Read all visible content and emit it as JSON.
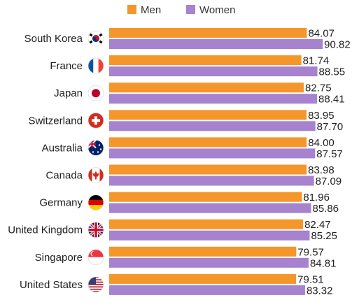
{
  "chart_data": {
    "type": "bar",
    "orientation": "horizontal",
    "title": "",
    "xlabel": "",
    "ylabel": "",
    "legend_position": "top-center",
    "grid": false,
    "categories": [
      "South Korea",
      "France",
      "Japan",
      "Switzerland",
      "Australia",
      "Canada",
      "Germany",
      "United Kingdom",
      "Singapore",
      "United States"
    ],
    "flags": [
      "south-korea-flag-icon",
      "france-flag-icon",
      "japan-flag-icon",
      "switzerland-flag-icon",
      "australia-flag-icon",
      "canada-flag-icon",
      "germany-flag-icon",
      "united-kingdom-flag-icon",
      "singapore-flag-icon",
      "united-states-flag-icon"
    ],
    "series": [
      {
        "name": "Men",
        "color": "#f5962a",
        "values": [
          84.07,
          81.74,
          82.75,
          83.95,
          84.0,
          83.98,
          81.96,
          82.47,
          79.57,
          79.51
        ],
        "labels": [
          "84.07",
          "81.74",
          "82.75",
          "83.95",
          "84.00",
          "83.98",
          "81.96",
          "82.47",
          "79.57",
          "79.51"
        ]
      },
      {
        "name": "Women",
        "color": "#a682cf",
        "values": [
          90.82,
          88.55,
          88.41,
          87.7,
          87.57,
          87.09,
          85.86,
          85.25,
          84.81,
          83.32
        ],
        "labels": [
          "90.82",
          "88.55",
          "88.41",
          "87.70",
          "87.57",
          "87.09",
          "85.86",
          "85.25",
          "84.81",
          "83.32"
        ]
      }
    ]
  }
}
